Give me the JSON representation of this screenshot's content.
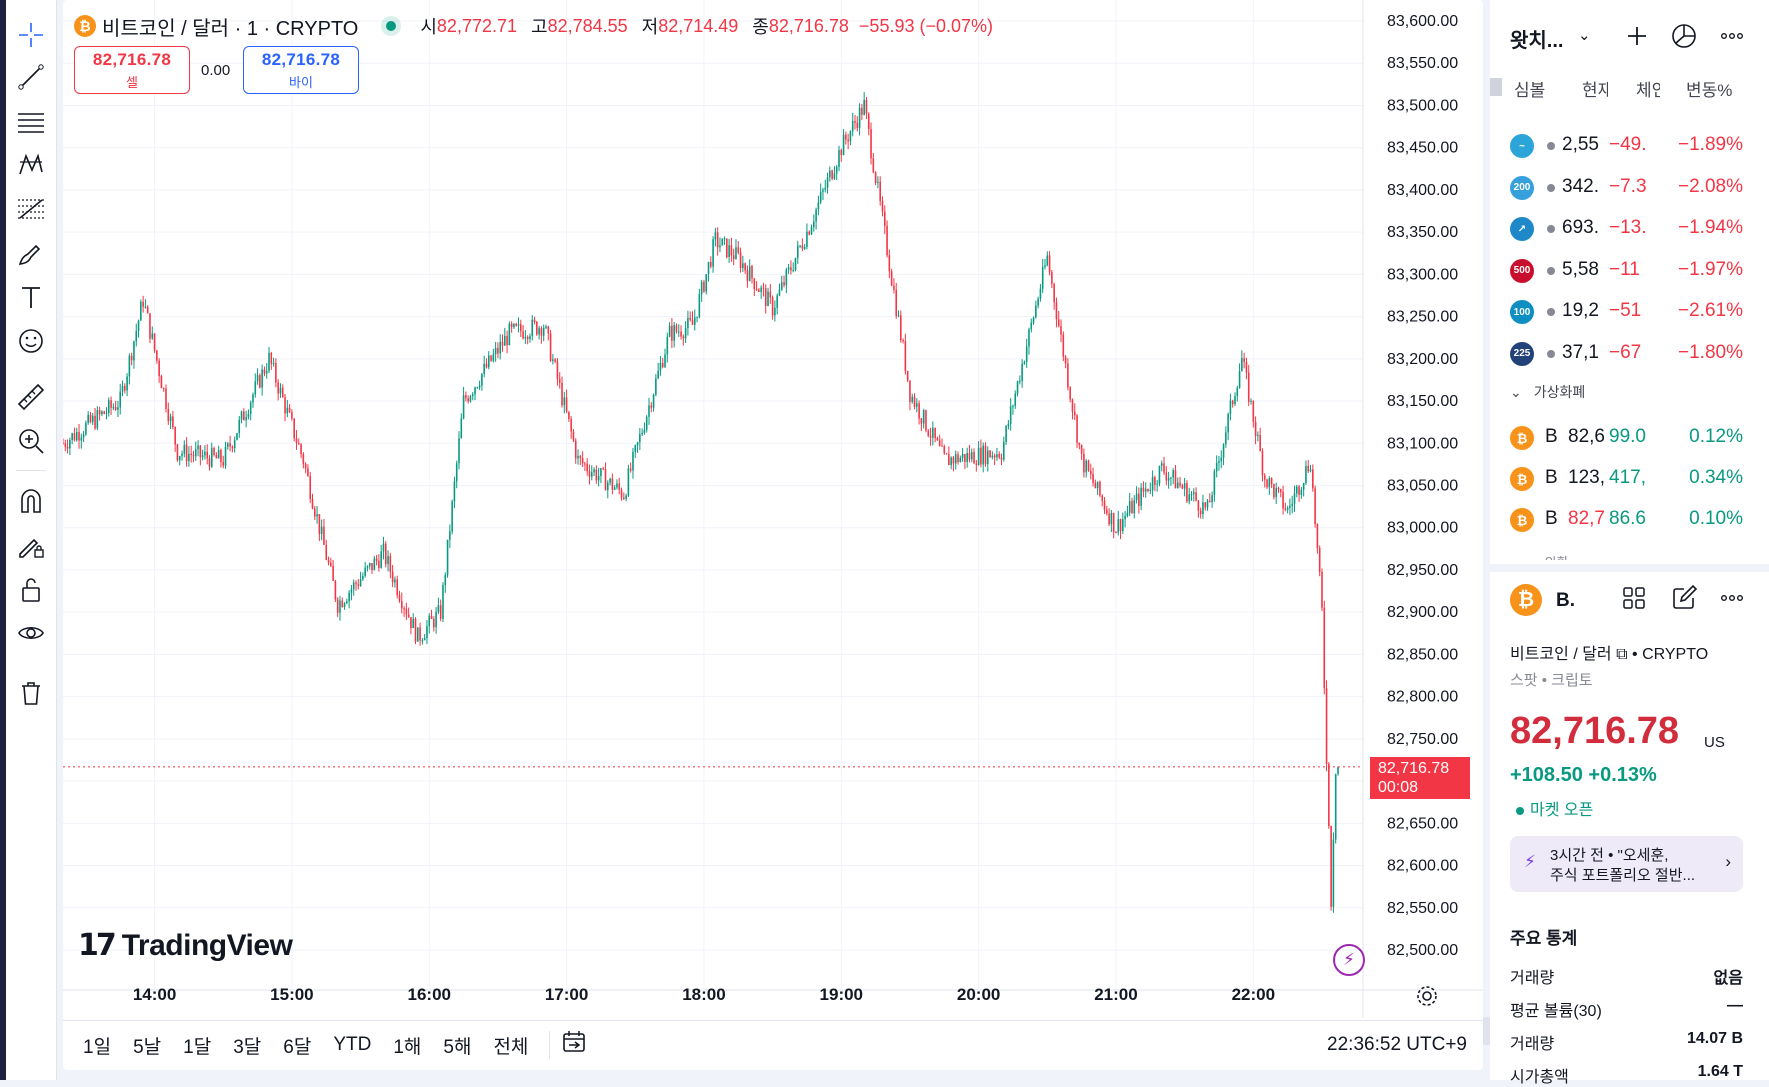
{
  "legend": {
    "symbol_icon_letter": "₿",
    "symbol_title": "비트코인 / 달러 · 1 · CRYPTO",
    "open_label": "시",
    "open_value": "82,772.71",
    "high_label": "고",
    "high_value": "82,784.55",
    "low_label": "저",
    "low_value": "82,714.49",
    "close_label": "종",
    "close_value": "82,716.78",
    "change": "−55.93 (−0.07%)"
  },
  "trade": {
    "sell_price": "82,716.78",
    "sell_label": "셀",
    "spread": "0.00",
    "buy_price": "82,716.78",
    "buy_label": "바이"
  },
  "price_axis": [
    "83,600.00",
    "83,550.00",
    "83,500.00",
    "83,450.00",
    "83,400.00",
    "83,350.00",
    "83,300.00",
    "83,250.00",
    "83,200.00",
    "83,150.00",
    "83,100.00",
    "83,050.00",
    "83,000.00",
    "82,950.00",
    "82,900.00",
    "82,850.00",
    "82,800.00",
    "82,750.00",
    "82,650.00",
    "82,600.00",
    "82,550.00",
    "82,500.00"
  ],
  "time_axis": [
    "14:00",
    "15:00",
    "16:00",
    "17:00",
    "18:00",
    "19:00",
    "20:00",
    "21:00",
    "22:00"
  ],
  "current_price": {
    "value": "82,716.78",
    "countdown": "00:08"
  },
  "watermark": {
    "logo": "17",
    "text": "TradingView"
  },
  "bottom_bar": {
    "ranges": [
      "1일",
      "5날",
      "1달",
      "3달",
      "6달",
      "YTD",
      "1해",
      "5해",
      "전체"
    ],
    "clock": "22:36:52 UTC+9"
  },
  "chart_data": {
    "type": "candlestick",
    "title": "비트코인 / 달러 · 1 · CRYPTO",
    "x_range": [
      "13:20",
      "22:37"
    ],
    "ylim": [
      82500,
      83600
    ],
    "ytick_step": 50,
    "last_price": 82716.78,
    "price_path": [
      [
        "13:20",
        83100
      ],
      [
        "13:45",
        83150
      ],
      [
        "13:55",
        83270
      ],
      [
        "14:10",
        83090
      ],
      [
        "14:30",
        83080
      ],
      [
        "14:50",
        83200
      ],
      [
        "15:05",
        83080
      ],
      [
        "15:20",
        82910
      ],
      [
        "15:40",
        82970
      ],
      [
        "15:55",
        82870
      ],
      [
        "16:05",
        82900
      ],
      [
        "16:15",
        83150
      ],
      [
        "16:35",
        83230
      ],
      [
        "16:50",
        83240
      ],
      [
        "17:05",
        83080
      ],
      [
        "17:25",
        83040
      ],
      [
        "17:45",
        83230
      ],
      [
        "17:55",
        83240
      ],
      [
        "18:05",
        83340
      ],
      [
        "18:15",
        83320
      ],
      [
        "18:30",
        83260
      ],
      [
        "18:45",
        83350
      ],
      [
        "19:00",
        83450
      ],
      [
        "19:10",
        83500
      ],
      [
        "19:30",
        83160
      ],
      [
        "19:45",
        83080
      ],
      [
        "20:10",
        83090
      ],
      [
        "20:30",
        83320
      ],
      [
        "20:45",
        83080
      ],
      [
        "21:00",
        83000
      ],
      [
        "21:20",
        83070
      ],
      [
        "21:40",
        83020
      ],
      [
        "21:55",
        83200
      ],
      [
        "22:05",
        83060
      ],
      [
        "22:15",
        83020
      ],
      [
        "22:25",
        83080
      ],
      [
        "22:30",
        82900
      ],
      [
        "22:34",
        82560
      ],
      [
        "22:36",
        82716.78
      ]
    ]
  },
  "watchlist": {
    "title": "왓치...",
    "columns": [
      "심볼",
      "현재",
      "체인",
      "변동%"
    ],
    "rows": [
      {
        "icon": "~",
        "color": "#2ba5d8",
        "price": "2,55",
        "chg": "−49.",
        "pct": "−1.89%"
      },
      {
        "icon": "200",
        "color": "#36a0dd",
        "price": "342.",
        "chg": "−7.3",
        "pct": "−2.08%"
      },
      {
        "icon": "↗",
        "color": "#1e88c8",
        "price": "693.",
        "chg": "−13.",
        "pct": "−1.94%"
      },
      {
        "icon": "500",
        "color": "#c8102e",
        "price": "5,58",
        "chg": "−11",
        "pct": "−1.97%"
      },
      {
        "icon": "100",
        "color": "#0d8fc2",
        "price": "19,2",
        "chg": "−51",
        "pct": "−2.61%"
      },
      {
        "icon": "225",
        "color": "#22427a",
        "price": "37,1",
        "chg": "−67",
        "pct": "−1.80%"
      }
    ],
    "section": "가상화폐",
    "crypto_rows": [
      {
        "letter": "B",
        "price": "82,6",
        "chg": "99.0",
        "pct": "0.12%"
      },
      {
        "letter": "B",
        "price": "123,",
        "chg": "417,",
        "pct": "0.34%"
      },
      {
        "letter": "B",
        "price": "82,7",
        "chg": "86.6",
        "pct": "0.10%"
      }
    ],
    "peek": "외환"
  },
  "details": {
    "short_title": "B.",
    "name": "비트코인 / 달러",
    "exchange": "CRYPTO",
    "sub": "스팟 • 크립토",
    "price": "82,716.78",
    "unit": "US",
    "change": "+108.50  +0.13%",
    "market_status": "마켓 오픈",
    "news_line1": "3시간 전  •  \"오세훈,",
    "news_line2": "주식 포트폴리오 절반...",
    "stats_title": "주요 통계",
    "stats": [
      {
        "k": "거래량",
        "v": "없음"
      },
      {
        "k": "평균 볼륨(30)",
        "v": "—"
      },
      {
        "k": "거래량",
        "v": "14.07 B"
      },
      {
        "k": "시가총액",
        "v": "1.64 T"
      }
    ]
  }
}
